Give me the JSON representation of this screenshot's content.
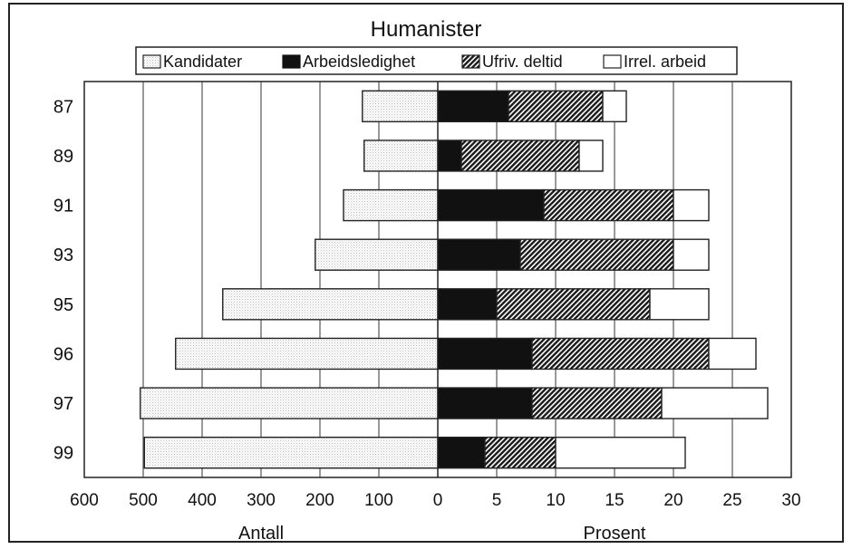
{
  "chart_data": {
    "type": "bar",
    "orientation": "horizontal",
    "title": "Humanister",
    "legend_position": "top",
    "grid": true,
    "categories": [
      "87",
      "89",
      "91",
      "93",
      "95",
      "96",
      "97",
      "99"
    ],
    "left_panel": {
      "xlabel": "Antall",
      "xlim": [
        0,
        600
      ],
      "ticks": [
        600,
        500,
        400,
        300,
        200,
        100,
        0
      ],
      "series": [
        {
          "name": "Kandidater",
          "values": [
            128,
            125,
            160,
            208,
            365,
            445,
            505,
            498
          ]
        }
      ]
    },
    "right_panel": {
      "xlabel": "Prosent",
      "xlim": [
        0,
        30
      ],
      "ticks": [
        0,
        5,
        10,
        15,
        20,
        25,
        30
      ],
      "stacked": true,
      "series": [
        {
          "name": "Arbeidsledighet",
          "values": [
            6,
            2,
            9,
            7,
            5,
            8,
            8,
            4
          ]
        },
        {
          "name": "Ufriv. deltid",
          "values": [
            8,
            10,
            11,
            13,
            13,
            15,
            11,
            6
          ]
        },
        {
          "name": "Irrel. arbeid",
          "values": [
            2,
            2,
            3,
            3,
            5,
            4,
            9,
            11
          ]
        }
      ]
    },
    "legend": [
      "Kandidater",
      "Arbeidsledighet",
      "Ufriv. deltid",
      "Irrel. arbeid"
    ]
  }
}
